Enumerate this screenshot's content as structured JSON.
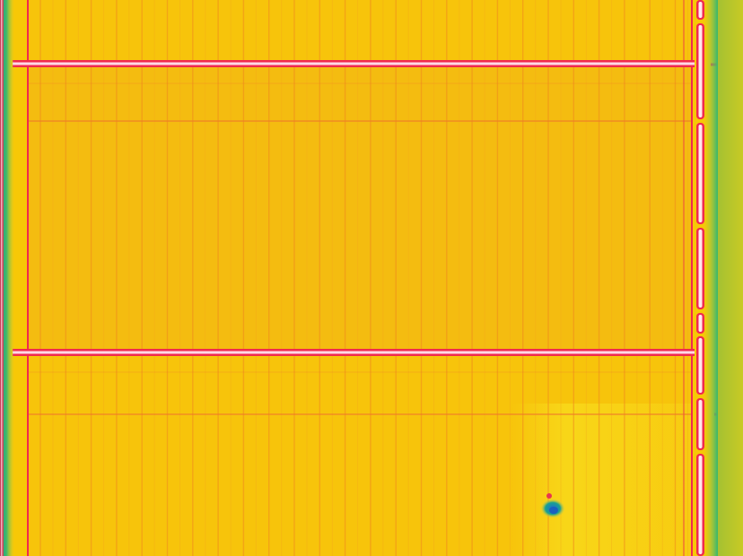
{
  "image": {
    "kind": "thermal-aerial-photo",
    "subject": "greenhouse roof",
    "palette": {
      "base": "#f7c806",
      "warm_panel": "#f3b21a",
      "warm_panel_alt": "#f6be12",
      "cool_patch": "#f8de1e",
      "hot_line": "#f02a4e",
      "hot_core": "#ffd9e6",
      "edge_green": "#3fb86a",
      "edge_teal": "#1aa190",
      "spot_blue": "#1a6fd0",
      "spot_red": "#e8354f"
    },
    "features": [
      "hot-horizontal-gutters",
      "vertical-panel-seams",
      "cool-green-side-edge",
      "hot-right-pipe-segments",
      "small-cool-spot"
    ]
  }
}
